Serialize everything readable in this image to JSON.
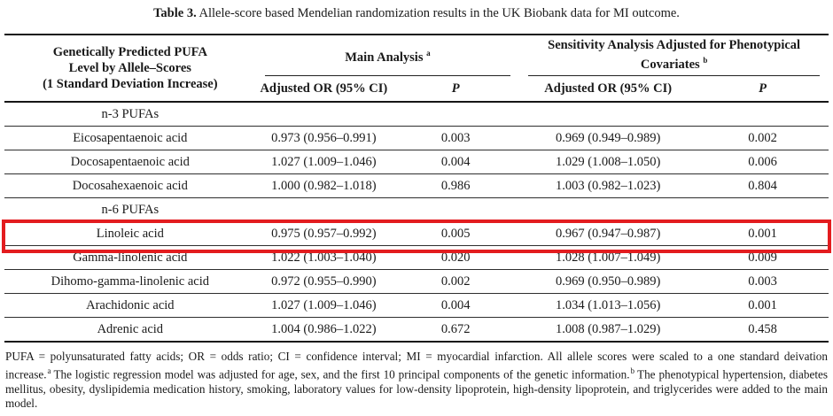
{
  "caption": {
    "label": "Table 3.",
    "text": "Allele-score based Mendelian randomization results in the UK Biobank data for MI outcome."
  },
  "colors": {
    "highlight_red": "#e31c1f",
    "text": "#1a1a1a",
    "rule_dark": "#161616"
  },
  "table": {
    "col1_header_lines": [
      "Genetically Predicted PUFA",
      "Level by Allele–Scores",
      "(1 Standard Deviation Increase)"
    ],
    "group_headers": [
      {
        "label": "Main Analysis",
        "sup": "a"
      },
      {
        "label": "Sensitivity Analysis Adjusted for Phenotypical Covariates",
        "sup": "b"
      }
    ],
    "sub_headers": [
      "Adjusted OR (95% CI)",
      "P",
      "Adjusted OR (95% CI)",
      "P"
    ],
    "rows": [
      {
        "type": "section",
        "label": "n-3 PUFAs"
      },
      {
        "type": "data",
        "label": "Eicosapentaenoic acid",
        "or_main": "0.973 (0.956–0.991)",
        "p_main": "0.003",
        "or_sens": "0.969 (0.949–0.989)",
        "p_sens": "0.002"
      },
      {
        "type": "data",
        "label": "Docosapentaenoic acid",
        "or_main": "1.027 (1.009–1.046)",
        "p_main": "0.004",
        "or_sens": "1.029 (1.008–1.050)",
        "p_sens": "0.006"
      },
      {
        "type": "data",
        "label": "Docosahexaenoic acid",
        "or_main": "1.000 (0.982–1.018)",
        "p_main": "0.986",
        "or_sens": "1.003 (0.982–1.023)",
        "p_sens": "0.804"
      },
      {
        "type": "section",
        "label": "n-6 PUFAs"
      },
      {
        "type": "data",
        "label": "Linoleic acid",
        "or_main": "0.975 (0.957–0.992)",
        "p_main": "0.005",
        "or_sens": "0.967 (0.947–0.987)",
        "p_sens": "0.001",
        "highlighted": true
      },
      {
        "type": "data",
        "label": "Gamma-linolenic acid",
        "or_main": "1.022 (1.003–1.040)",
        "p_main": "0.020",
        "or_sens": "1.028 (1.007–1.049)",
        "p_sens": "0.009"
      },
      {
        "type": "data",
        "label": "Dihomo-gamma-linolenic acid",
        "or_main": "0.972 (0.955–0.990)",
        "p_main": "0.002",
        "or_sens": "0.969 (0.950–0.989)",
        "p_sens": "0.003"
      },
      {
        "type": "data",
        "label": "Arachidonic acid",
        "or_main": "1.027 (1.009–1.046)",
        "p_main": "0.004",
        "or_sens": "1.034 (1.013–1.056)",
        "p_sens": "0.001"
      },
      {
        "type": "data",
        "label": "Adrenic acid",
        "or_main": "1.004 (0.986–1.022)",
        "p_main": "0.672",
        "or_sens": "1.008 (0.987–1.029)",
        "p_sens": "0.458"
      }
    ]
  },
  "footnote": {
    "segments": [
      "PUFA = polyunsaturated fatty acids; OR = odds ratio; CI = confidence interval; MI = myocardial infarction. All allele scores were scaled to a one standard deivation increase.",
      "The logistic regression model was adjusted for age, sex, and the first 10 principal components of the genetic information.",
      "The phenotypical hypertension, diabetes mellitus, obesity, dyslipidemia medication history, smoking, laboratory values for low-density lipoprotein, high-density lipoprotein, and triglycerides were added to the main model."
    ],
    "sup_a": "a",
    "sup_b": "b"
  }
}
